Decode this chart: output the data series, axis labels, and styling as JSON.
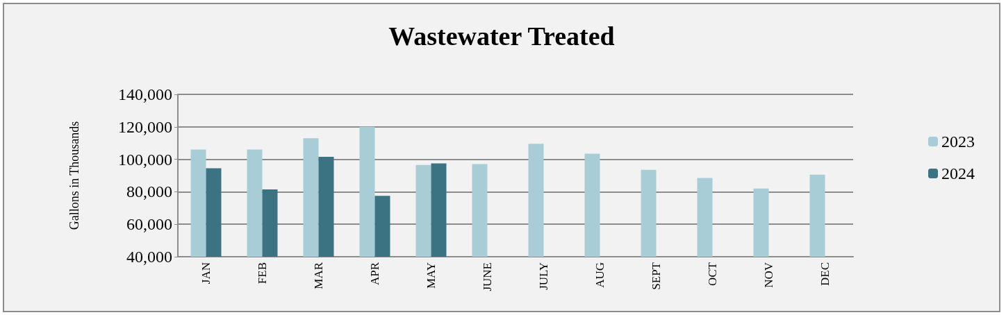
{
  "chart_data": {
    "type": "bar",
    "title": "Wastewater Treated",
    "ylabel": "Gallons in Thousands",
    "categories": [
      "JAN",
      "FEB",
      "MAR",
      "APR",
      "MAY",
      "JUNE",
      "JULY",
      "AUG",
      "SEPT",
      "OCT",
      "NOV",
      "DEC"
    ],
    "series": [
      {
        "name": "2023",
        "color": "#a8cdd7",
        "values": [
          106000,
          106000,
          113000,
          120000,
          96500,
          97000,
          109500,
          103500,
          93500,
          88500,
          82000,
          90500
        ]
      },
      {
        "name": "2024",
        "color": "#3b7382",
        "values": [
          94500,
          81500,
          101500,
          77500,
          97500,
          null,
          null,
          null,
          null,
          null,
          null,
          null
        ]
      }
    ],
    "ylim": [
      40000,
      140000
    ],
    "yticks": [
      {
        "value": 40000,
        "label": "40,000"
      },
      {
        "value": 60000,
        "label": "60,000"
      },
      {
        "value": 80000,
        "label": "80,000"
      },
      {
        "value": 100000,
        "label": "100,000"
      },
      {
        "value": 120000,
        "label": "120,000"
      },
      {
        "value": 140000,
        "label": "140,000"
      }
    ],
    "grid": "y",
    "legend": "right"
  }
}
